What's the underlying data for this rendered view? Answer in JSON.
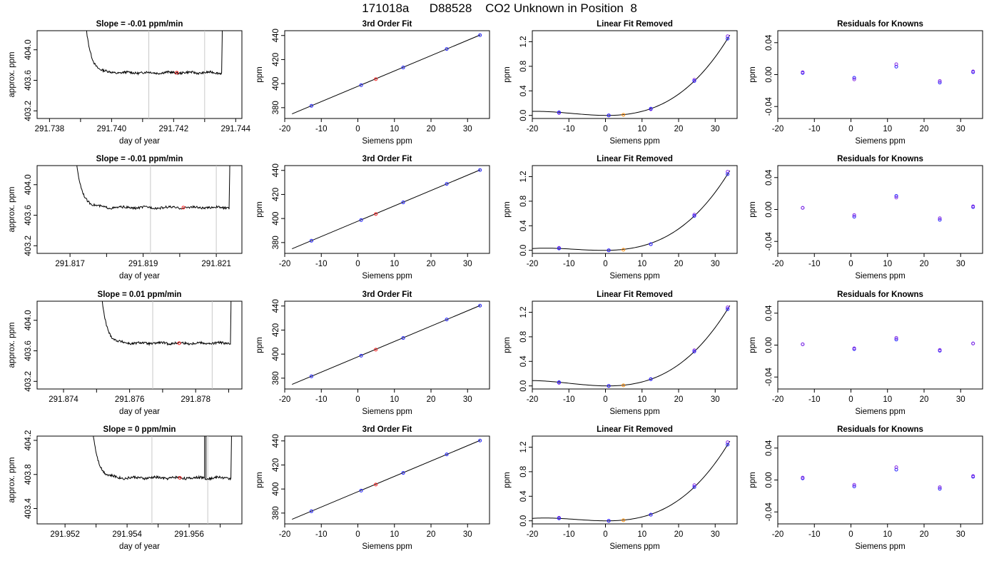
{
  "title": "171018a      D88528    CO2 Unknown in Position  8",
  "colors": {
    "blue": "#1f1fff",
    "red": "#ff2020",
    "orange": "#ff8a00",
    "purple": "#8a2be2",
    "line": "#000000",
    "vline": "#c8c8c8"
  },
  "chart_data": [
    {
      "type": "line",
      "title": "Slope =  -0.01  ppm/min",
      "xlabel": "day of year",
      "ylabel": "approx. ppm",
      "xlim": [
        291.7376,
        291.7442
      ],
      "ylim": [
        403.1,
        404.25
      ],
      "xticks": [
        "291.738",
        "291.740",
        "291.742",
        "291.744"
      ],
      "xtickvals": [
        291.738,
        291.74,
        291.742,
        291.744
      ],
      "yticks": [
        "403.2",
        "403.6",
        "404.0"
      ],
      "ytickvals": [
        403.2,
        403.6,
        404.0
      ],
      "minor_xticks": [
        291.739,
        291.741,
        291.743
      ],
      "vlines": [
        291.7412,
        291.743
      ],
      "base": 403.7,
      "point": [
        291.7421,
        403.7
      ],
      "x_start": 291.739,
      "x_end": 291.7436
    },
    {
      "type": "scatter",
      "title": "3rd Order Fit",
      "xlabel": "Siemens ppm",
      "ylabel": "ppm",
      "xlim": [
        -20,
        36
      ],
      "ylim": [
        371,
        444
      ],
      "xticks": [
        "-20",
        "-10",
        "0",
        "10",
        "20",
        "30"
      ],
      "xtickvals": [
        -20,
        -10,
        0,
        10,
        20,
        30
      ],
      "yticks": [
        "380",
        "400",
        "420",
        "440"
      ],
      "ytickvals": [
        380,
        400,
        420,
        440
      ],
      "line": [
        [
          -18,
          374.8
        ],
        [
          33.5,
          440.5
        ]
      ],
      "knowns": [
        [
          -12.7,
          381.5
        ],
        [
          0.9,
          398.7
        ],
        [
          12.4,
          413.4
        ],
        [
          24.3,
          428.8
        ],
        [
          33.4,
          440.3
        ]
      ],
      "unknown": [
        4.9,
        403.7
      ]
    },
    {
      "type": "scatter",
      "title": "Linear Fit Removed",
      "xlabel": "Siemens ppm",
      "ylabel": "ppm",
      "xlim": [
        -20,
        36
      ],
      "ylim": [
        -0.05,
        1.38
      ],
      "xticks": [
        "-20",
        "-10",
        "0",
        "10",
        "20",
        "30"
      ],
      "xtickvals": [
        -20,
        -10,
        0,
        10,
        20,
        30
      ],
      "yticks": [
        "0.0",
        "0.4",
        "0.8",
        "1.2"
      ],
      "ytickvals": [
        0.0,
        0.4,
        0.8,
        1.2
      ],
      "knowns": [
        [
          -12.7,
          0.05
        ],
        [
          0.9,
          0.0
        ],
        [
          12.4,
          0.11
        ],
        [
          24.3,
          0.56
        ],
        [
          33.4,
          1.25
        ]
      ],
      "knowns2": [
        [
          -12.7,
          0.04
        ],
        [
          0.9,
          0.0
        ],
        [
          12.4,
          0.1
        ],
        [
          24.3,
          0.58
        ],
        [
          33.4,
          1.29
        ]
      ],
      "unknown": [
        4.9,
        0.01
      ]
    },
    {
      "type": "scatter",
      "title": "Residuals for Knowns",
      "xlabel": "Siemens ppm",
      "ylabel": "ppm",
      "xlim": [
        -20,
        36
      ],
      "ylim": [
        -0.055,
        0.055
      ],
      "xticks": [
        "-20",
        "-10",
        "0",
        "10",
        "20",
        "30"
      ],
      "xtickvals": [
        -20,
        -10,
        0,
        10,
        20,
        30
      ],
      "yticks": [
        "-0.04",
        "0.00",
        "0.04"
      ],
      "ytickvals": [
        -0.04,
        0.0,
        0.04
      ],
      "knowns": [
        [
          -13.2,
          0.003
        ],
        [
          0.9,
          -0.006
        ],
        [
          12.4,
          0.013
        ],
        [
          24.3,
          -0.008
        ],
        [
          33.4,
          0.004
        ]
      ],
      "knowns2": [
        [
          -13.2,
          0.002
        ],
        [
          0.9,
          -0.004
        ],
        [
          12.4,
          0.01
        ],
        [
          24.3,
          -0.01
        ],
        [
          33.4,
          0.003
        ]
      ]
    },
    {
      "type": "line",
      "title": "Slope =  -0.01  ppm/min",
      "xlabel": "day of year",
      "ylabel": "approx. ppm",
      "xlim": [
        291.8161,
        291.8217
      ],
      "ylim": [
        403.1,
        404.25
      ],
      "xticks": [
        "291.817",
        "291.819",
        "291.821"
      ],
      "xtickvals": [
        291.817,
        291.819,
        291.821
      ],
      "yticks": [
        "403.2",
        "403.6",
        "404.0"
      ],
      "ytickvals": [
        403.2,
        403.6,
        404.0
      ],
      "minor_xticks": [
        291.818,
        291.82
      ],
      "vlines": [
        291.8192,
        291.821
      ],
      "base": 403.7,
      "point": [
        291.8201,
        403.7
      ],
      "x_start": 291.817,
      "x_end": 291.8214
    },
    {
      "type": "scatter",
      "title": "3rd Order Fit",
      "xlabel": "Siemens ppm",
      "ylabel": "ppm",
      "xlim": [
        -20,
        36
      ],
      "ylim": [
        371,
        444
      ],
      "xticks": [
        "-20",
        "-10",
        "0",
        "10",
        "20",
        "30"
      ],
      "xtickvals": [
        -20,
        -10,
        0,
        10,
        20,
        30
      ],
      "yticks": [
        "380",
        "400",
        "420",
        "440"
      ],
      "ytickvals": [
        380,
        400,
        420,
        440
      ],
      "line": [
        [
          -18,
          374.8
        ],
        [
          33.5,
          440.5
        ]
      ],
      "knowns": [
        [
          -12.7,
          381.5
        ],
        [
          0.9,
          398.7
        ],
        [
          12.4,
          413.4
        ],
        [
          24.3,
          428.8
        ],
        [
          33.4,
          440.3
        ]
      ],
      "unknown": [
        4.9,
        403.7
      ]
    },
    {
      "type": "scatter",
      "title": "Linear Fit Removed",
      "xlabel": "Siemens ppm",
      "ylabel": "ppm",
      "xlim": [
        -20,
        36
      ],
      "ylim": [
        -0.05,
        1.38
      ],
      "xticks": [
        "-20",
        "-10",
        "0",
        "10",
        "20",
        "30"
      ],
      "xtickvals": [
        -20,
        -10,
        0,
        10,
        20,
        30
      ],
      "yticks": [
        "0.0",
        "0.4",
        "0.8",
        "1.2"
      ],
      "ytickvals": [
        0.0,
        0.4,
        0.8,
        1.2
      ],
      "knowns": [
        [
          -12.7,
          0.03
        ],
        [
          0.9,
          0.0
        ],
        [
          12.4,
          0.1
        ],
        [
          24.3,
          0.56
        ],
        [
          33.4,
          1.24
        ]
      ],
      "knowns2": [
        [
          -12.7,
          0.04
        ],
        [
          0.9,
          0.0
        ],
        [
          12.4,
          0.1
        ],
        [
          24.3,
          0.58
        ],
        [
          33.4,
          1.28
        ]
      ],
      "unknown": [
        4.9,
        0.01
      ]
    },
    {
      "type": "scatter",
      "title": "Residuals for Knowns",
      "xlabel": "Siemens ppm",
      "ylabel": "ppm",
      "xlim": [
        -20,
        36
      ],
      "ylim": [
        -0.055,
        0.055
      ],
      "xticks": [
        "-20",
        "-10",
        "0",
        "10",
        "20",
        "30"
      ],
      "xtickvals": [
        -20,
        -10,
        0,
        10,
        20,
        30
      ],
      "yticks": [
        "-0.04",
        "0.00",
        "0.04"
      ],
      "ytickvals": [
        -0.04,
        0.0,
        0.04
      ],
      "knowns": [
        [
          -13.2,
          0.002
        ],
        [
          0.9,
          -0.007
        ],
        [
          12.4,
          0.015
        ],
        [
          24.3,
          -0.011
        ],
        [
          33.4,
          0.004
        ]
      ],
      "knowns2": [
        [
          -13.2,
          0.002
        ],
        [
          0.9,
          -0.009
        ],
        [
          12.4,
          0.017
        ],
        [
          24.3,
          -0.013
        ],
        [
          33.4,
          0.003
        ]
      ]
    },
    {
      "type": "line",
      "title": "Slope =  0.01  ppm/min",
      "xlabel": "day of year",
      "ylabel": "approx. ppm",
      "xlim": [
        291.8732,
        291.8794
      ],
      "ylim": [
        403.1,
        404.25
      ],
      "xticks": [
        "291.874",
        "291.876",
        "291.878"
      ],
      "xtickvals": [
        291.874,
        291.876,
        291.878
      ],
      "yticks": [
        "403.2",
        "403.6",
        "404.0"
      ],
      "ytickvals": [
        403.2,
        403.6,
        404.0
      ],
      "minor_xticks": [
        291.875,
        291.877,
        291.879
      ],
      "vlines": [
        291.8767,
        291.8785
      ],
      "base": 403.7,
      "point": [
        291.8775,
        403.7
      ],
      "x_start": 291.875,
      "x_end": 291.8791
    },
    {
      "type": "scatter",
      "title": "3rd Order Fit",
      "xlabel": "Siemens ppm",
      "ylabel": "ppm",
      "xlim": [
        -20,
        36
      ],
      "ylim": [
        371,
        444
      ],
      "xticks": [
        "-20",
        "-10",
        "0",
        "10",
        "20",
        "30"
      ],
      "xtickvals": [
        -20,
        -10,
        0,
        10,
        20,
        30
      ],
      "yticks": [
        "380",
        "400",
        "420",
        "440"
      ],
      "ytickvals": [
        380,
        400,
        420,
        440
      ],
      "line": [
        [
          -18,
          374.8
        ],
        [
          33.5,
          440.5
        ]
      ],
      "knowns": [
        [
          -12.7,
          381.5
        ],
        [
          0.9,
          398.7
        ],
        [
          12.4,
          413.4
        ],
        [
          24.3,
          428.8
        ],
        [
          33.4,
          440.3
        ]
      ],
      "unknown": [
        4.9,
        403.7
      ]
    },
    {
      "type": "scatter",
      "title": "Linear Fit Removed",
      "xlabel": "Siemens ppm",
      "ylabel": "ppm",
      "xlim": [
        -20,
        36
      ],
      "ylim": [
        -0.05,
        1.38
      ],
      "xticks": [
        "-20",
        "-10",
        "0",
        "10",
        "20",
        "30"
      ],
      "xtickvals": [
        -20,
        -10,
        0,
        10,
        20,
        30
      ],
      "yticks": [
        "0.0",
        "0.4",
        "0.8",
        "1.2"
      ],
      "ytickvals": [
        0.0,
        0.4,
        0.8,
        1.2
      ],
      "knowns": [
        [
          -12.7,
          0.06
        ],
        [
          0.9,
          0.0
        ],
        [
          12.4,
          0.11
        ],
        [
          24.3,
          0.56
        ],
        [
          33.4,
          1.25
        ]
      ],
      "knowns2": [
        [
          -12.7,
          0.05
        ],
        [
          0.9,
          0.0
        ],
        [
          12.4,
          0.11
        ],
        [
          24.3,
          0.58
        ],
        [
          33.4,
          1.28
        ]
      ],
      "unknown": [
        4.9,
        0.01
      ]
    },
    {
      "type": "scatter",
      "title": "Residuals for Knowns",
      "xlabel": "Siemens ppm",
      "ylabel": "ppm",
      "xlim": [
        -20,
        36
      ],
      "ylim": [
        -0.055,
        0.055
      ],
      "xticks": [
        "-20",
        "-10",
        "0",
        "10",
        "20",
        "30"
      ],
      "xtickvals": [
        -20,
        -10,
        0,
        10,
        20,
        30
      ],
      "yticks": [
        "-0.04",
        "0.00",
        "0.04"
      ],
      "ytickvals": [
        -0.04,
        0.0,
        0.04
      ],
      "knowns": [
        [
          -13.2,
          0.001
        ],
        [
          0.9,
          -0.004
        ],
        [
          12.4,
          0.009
        ],
        [
          24.3,
          -0.006
        ],
        [
          33.4,
          0.002
        ]
      ],
      "knowns2": [
        [
          -13.2,
          0.001
        ],
        [
          0.9,
          -0.005
        ],
        [
          12.4,
          0.007
        ],
        [
          24.3,
          -0.007
        ],
        [
          33.4,
          0.002
        ]
      ]
    },
    {
      "type": "line",
      "title": "Slope =  0  ppm/min",
      "xlabel": "day of year",
      "ylabel": "approx. ppm",
      "xlim": [
        291.9511,
        291.9577
      ],
      "ylim": [
        403.22,
        404.25
      ],
      "xticks": [
        "291.952",
        "291.954",
        "291.956"
      ],
      "xtickvals": [
        291.952,
        291.954,
        291.956
      ],
      "yticks": [
        "403.4",
        "403.8",
        "404.2"
      ],
      "ytickvals": [
        403.4,
        403.8,
        404.2
      ],
      "minor_xticks": [
        291.953,
        291.955,
        291.957
      ],
      "vlines": [
        291.9548,
        291.9566
      ],
      "base": 403.76,
      "point": [
        291.9557,
        403.76
      ],
      "x_start": 291.9527,
      "x_end": 291.9574,
      "spike_x": 291.9565
    },
    {
      "type": "scatter",
      "title": "3rd Order Fit",
      "xlabel": "Siemens ppm",
      "ylabel": "ppm",
      "xlim": [
        -20,
        36
      ],
      "ylim": [
        371,
        444
      ],
      "xticks": [
        "-20",
        "-10",
        "0",
        "10",
        "20",
        "30"
      ],
      "xtickvals": [
        -20,
        -10,
        0,
        10,
        20,
        30
      ],
      "yticks": [
        "380",
        "400",
        "420",
        "440"
      ],
      "ytickvals": [
        380,
        400,
        420,
        440
      ],
      "line": [
        [
          -18,
          374.8
        ],
        [
          33.5,
          440.5
        ]
      ],
      "knowns": [
        [
          -12.7,
          381.5
        ],
        [
          0.9,
          398.7
        ],
        [
          12.4,
          413.4
        ],
        [
          24.3,
          428.8
        ],
        [
          33.4,
          440.3
        ]
      ],
      "unknown": [
        4.9,
        403.7
      ]
    },
    {
      "type": "scatter",
      "title": "Linear Fit Removed",
      "xlabel": "Siemens ppm",
      "ylabel": "ppm",
      "xlim": [
        -20,
        36
      ],
      "ylim": [
        -0.05,
        1.38
      ],
      "xticks": [
        "-20",
        "-10",
        "0",
        "10",
        "20",
        "30"
      ],
      "xtickvals": [
        -20,
        -10,
        0,
        10,
        20,
        30
      ],
      "yticks": [
        "0.0",
        "0.4",
        "0.8",
        "1.2"
      ],
      "ytickvals": [
        0.0,
        0.4,
        0.8,
        1.2
      ],
      "knowns": [
        [
          -12.7,
          0.04
        ],
        [
          0.9,
          0.0
        ],
        [
          12.4,
          0.1
        ],
        [
          24.3,
          0.55
        ],
        [
          33.4,
          1.24
        ]
      ],
      "knowns2": [
        [
          -12.7,
          0.05
        ],
        [
          0.9,
          0.0
        ],
        [
          12.4,
          0.1
        ],
        [
          24.3,
          0.58
        ],
        [
          33.4,
          1.28
        ]
      ],
      "unknown": [
        4.9,
        0.01
      ]
    },
    {
      "type": "scatter",
      "title": "Residuals for Knowns",
      "xlabel": "Siemens ppm",
      "ylabel": "ppm",
      "xlim": [
        -20,
        36
      ],
      "ylim": [
        -0.055,
        0.055
      ],
      "xticks": [
        "-20",
        "-10",
        "0",
        "10",
        "20",
        "30"
      ],
      "xtickvals": [
        -20,
        -10,
        0,
        10,
        20,
        30
      ],
      "yticks": [
        "-0.04",
        "0.00",
        "0.04"
      ],
      "ytickvals": [
        -0.04,
        0.0,
        0.04
      ],
      "knowns": [
        [
          -13.2,
          0.003
        ],
        [
          0.9,
          -0.006
        ],
        [
          12.4,
          0.016
        ],
        [
          24.3,
          -0.009
        ],
        [
          33.4,
          0.005
        ]
      ],
      "knowns2": [
        [
          -13.2,
          0.002
        ],
        [
          0.9,
          -0.008
        ],
        [
          12.4,
          0.013
        ],
        [
          24.3,
          -0.011
        ],
        [
          33.4,
          0.004
        ]
      ]
    }
  ]
}
